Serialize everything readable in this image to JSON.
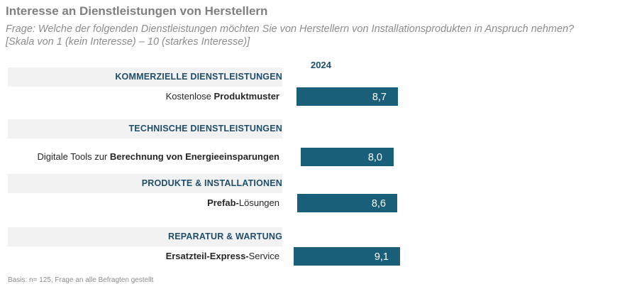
{
  "title": "Interesse an Dienstleistungen von Herstellern",
  "subtitle_line1": "Frage: Welche der folgenden Dienstleistungen möchten Sie von Herstellern von Installationsprodukten in Anspruch nehmen?",
  "subtitle_line2": "[Skala von 1 (kein Interesse) – 10 (starkes Interesse)]",
  "footnote": "Basis: n= 125, Frage an alle Befragten gestellt",
  "chart_data": {
    "type": "bar",
    "orientation": "horizontal",
    "series": [
      {
        "name": "2024",
        "values": [
          8.7,
          8.0,
          8.6,
          9.1
        ]
      }
    ],
    "groups": [
      {
        "category": "KOMMERZIELLE DIENSTLEISTUNGEN",
        "item_plain_before": "Kostenlose ",
        "item_bold": "Produktmuster",
        "item_plain_after": "",
        "value": 8.7,
        "value_label": "8,7"
      },
      {
        "category": "TECHNISCHE DIENSTLEISTUNGEN",
        "item_plain_before": "Digitale Tools zur ",
        "item_bold": "Berechnung von Energieeinsparungen",
        "item_plain_after": "",
        "value": 8.0,
        "value_label": "8,0"
      },
      {
        "category": "PRODUKTE & INSTALLATIONEN",
        "item_plain_before": "",
        "item_bold": "Prefab-",
        "item_plain_after": "Lösungen",
        "value": 8.6,
        "value_label": "8,6"
      },
      {
        "category": "REPARATUR & WARTUNG",
        "item_plain_before": "",
        "item_bold": "Ersatzteil-Express-",
        "item_plain_after": "Service",
        "value": 9.1,
        "value_label": "9,1"
      }
    ],
    "xlim": [
      1,
      10
    ],
    "value_axis": "hidden",
    "colors": {
      "bar": "#1a5f7a",
      "category_text": "#1f4e6b",
      "band": "#f2f2f2"
    }
  }
}
